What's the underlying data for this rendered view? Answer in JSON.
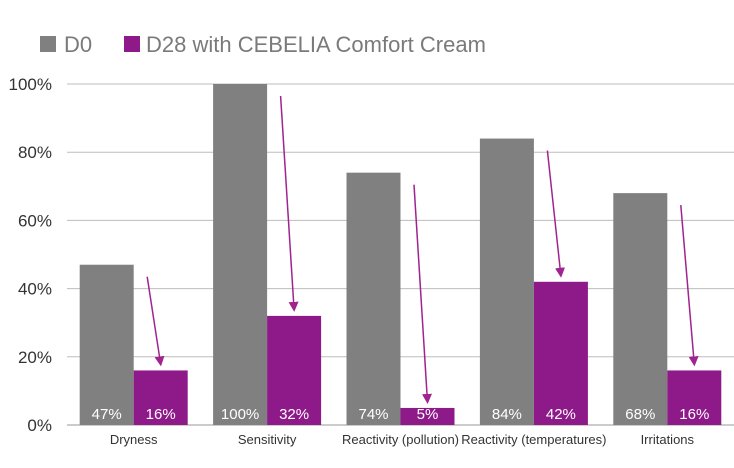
{
  "chart_data": {
    "type": "bar",
    "categories": [
      "Dryness",
      "Sensitivity",
      "Reactivity (pollution)",
      "Reactivity (temperatures)",
      "Irritations"
    ],
    "series": [
      {
        "name": "D0",
        "values": [
          47,
          100,
          74,
          84,
          68
        ],
        "labels": [
          "47%",
          "100%",
          "74%",
          "84%",
          "68%"
        ],
        "color": "#808080"
      },
      {
        "name": "D28 with CEBELIA Comfort Cream",
        "values": [
          16,
          32,
          5,
          42,
          16
        ],
        "labels": [
          "16%",
          "32%",
          "5%",
          "42%",
          "16%"
        ],
        "color": "#8e1a8a"
      }
    ],
    "yticks": [
      "0%",
      "20%",
      "40%",
      "60%",
      "80%",
      "100%"
    ],
    "ylim": [
      0,
      100
    ],
    "grid": true,
    "legend": "top-left",
    "arrow_color": "#a0238f"
  }
}
